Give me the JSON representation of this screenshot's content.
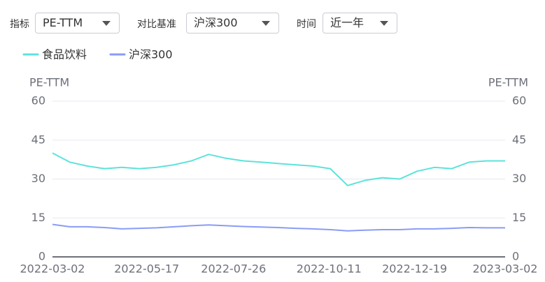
{
  "controls": [
    {
      "label": "指标",
      "value": "PE-TTM"
    },
    {
      "label": "对比基准",
      "value": "沪深300"
    },
    {
      "label": "时间",
      "value": "近一年"
    }
  ],
  "chart_data": {
    "type": "line",
    "y_label": "PE-TTM",
    "y2_label": "PE-TTM",
    "x": [
      "2022-03-02",
      "2022-03-16",
      "2022-03-30",
      "2022-04-13",
      "2022-04-27",
      "2022-05-11",
      "2022-05-25",
      "2022-06-08",
      "2022-06-22",
      "2022-07-06",
      "2022-07-20",
      "2022-08-03",
      "2022-08-17",
      "2022-08-31",
      "2022-09-14",
      "2022-09-28",
      "2022-10-12",
      "2022-10-26",
      "2022-11-09",
      "2022-11-23",
      "2022-12-07",
      "2022-12-21",
      "2023-01-04",
      "2023-01-18",
      "2023-02-01",
      "2023-02-15",
      "2023-03-02"
    ],
    "xlim": [
      "2022-03-02",
      "2023-03-02"
    ],
    "xticks": [
      "2022-03-02",
      "2022-05-17",
      "2022-07-26",
      "2022-10-11",
      "2022-12-19",
      "2023-03-02"
    ],
    "series": [
      {
        "name": "食品饮料",
        "color": "#5ce3da",
        "values": [
          40,
          36.5,
          35,
          34,
          34.5,
          34,
          34.5,
          35.5,
          37,
          39.5,
          38,
          37,
          36.5,
          36,
          35.5,
          35,
          34,
          27.5,
          29.5,
          30.5,
          30,
          33,
          34.5,
          34,
          36.5,
          37,
          37
        ]
      },
      {
        "name": "沪深300",
        "color": "#8a9cf6",
        "values": [
          12.5,
          11.6,
          11.6,
          11.3,
          10.8,
          11,
          11.2,
          11.6,
          12,
          12.3,
          12,
          11.7,
          11.5,
          11.3,
          11,
          10.8,
          10.5,
          10,
          10.3,
          10.5,
          10.5,
          10.8,
          10.8,
          11,
          11.3,
          11.2,
          11.2
        ]
      }
    ],
    "ylim": [
      0,
      60
    ],
    "yticks": [
      0,
      15,
      30,
      45,
      60
    ],
    "y2lim": [
      0,
      60
    ],
    "y2ticks": [
      0,
      15,
      30,
      45,
      60
    ],
    "grid": true
  }
}
